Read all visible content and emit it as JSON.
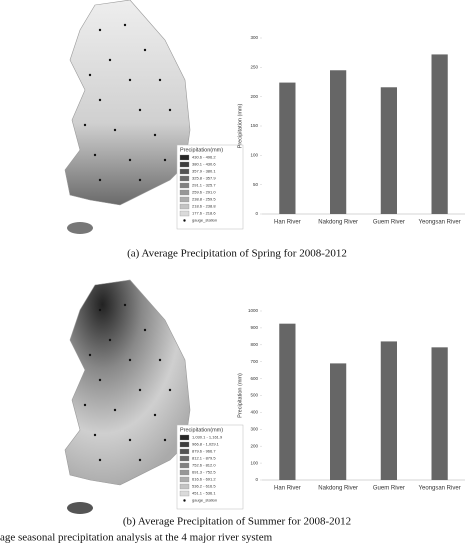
{
  "chart_data": [
    {
      "type": "bar",
      "caption": "(a) Average Precipitation of Spring for 2008-2012",
      "y_label": "Precipitation (mm)",
      "categories": [
        "Han River",
        "Nakdong River",
        "Guem River",
        "Yeongsan River"
      ],
      "values": [
        224,
        245,
        216,
        272
      ],
      "color": "#666666",
      "ylim": [
        0,
        300
      ],
      "yticks": [
        0,
        50,
        100,
        150,
        200,
        250,
        300
      ],
      "grid": false,
      "map_legend": {
        "title": "Precipitation(mm)",
        "items": [
          "430.6 - 496.2",
          "380.1 - 430.6",
          "357.9 - 380.1",
          "325.8 - 357.9",
          "291.1 - 325.7",
          "259.6 - 291.0",
          "238.8 - 259.5",
          "218.6 - 238.8",
          "177.6 - 218.6"
        ],
        "station": "gauge_station"
      }
    },
    {
      "type": "bar",
      "caption": "(b) Average Precipitation of Summer for 2008-2012",
      "y_label": "Precipitation (mm)",
      "categories": [
        "Han River",
        "Nakdong River",
        "Guem River",
        "Yeongsan River"
      ],
      "values": [
        925,
        690,
        820,
        785
      ],
      "color": "#666666",
      "ylim": [
        0,
        1000
      ],
      "yticks": [
        0,
        100,
        200,
        300,
        400,
        500,
        600,
        700,
        800,
        900,
        1000
      ],
      "grid": false,
      "map_legend": {
        "title": "Precipitation(mm)",
        "items": [
          "1,030.1 - 1,161.9",
          "966.8 - 1,029.1",
          "879.6 - 966.7",
          "812.1 - 879.5",
          "752.6 - 812.0",
          "691.3 - 752.5",
          "616.6 - 691.2",
          "536.2 - 616.5",
          "451.1 - 536.1"
        ],
        "station": "gauge_station"
      }
    }
  ],
  "footer_text": "age seasonal precipitation analysis at the 4 major river system"
}
